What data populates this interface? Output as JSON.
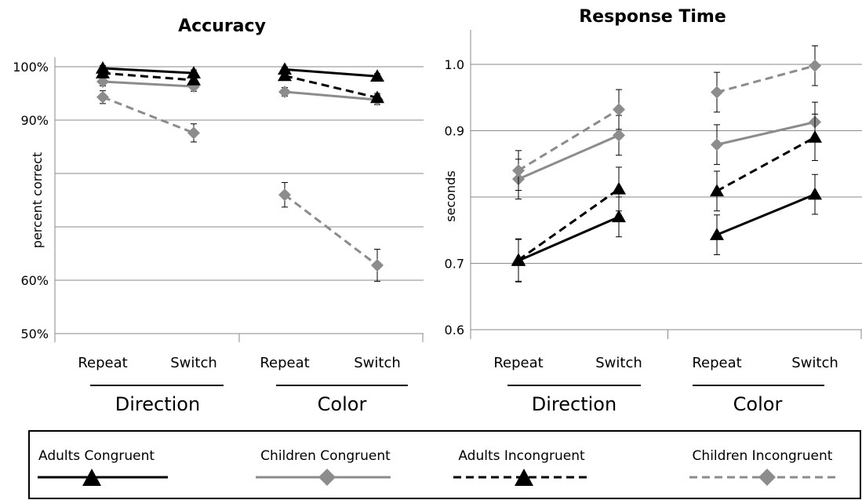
{
  "chart_data": [
    {
      "type": "line",
      "title": "Accuracy",
      "ylabel": "percent correct",
      "ylim": [
        50,
        100
      ],
      "yticks": [
        50,
        60,
        70,
        80,
        90,
        100
      ],
      "ytick_labels": [
        "50%",
        "60%",
        "",
        "",
        "90%",
        "100%"
      ],
      "categories": [
        "Repeat",
        "Switch",
        "Repeat",
        "Switch"
      ],
      "groups": [
        "Direction",
        "Color"
      ],
      "series": [
        {
          "name": "Adults Congruent",
          "values": [
            [
              99.7,
              98.8
            ],
            [
              99.5,
              98.2
            ]
          ],
          "errors": [
            [
              0.5,
              0.6
            ],
            [
              0.4,
              0.5
            ]
          ]
        },
        {
          "name": "Children Congruent",
          "values": [
            [
              97.2,
              96.3
            ],
            [
              95.3,
              93.8
            ]
          ],
          "errors": [
            [
              0.8,
              0.9
            ],
            [
              0.8,
              0.9
            ]
          ]
        },
        {
          "name": "Adults Incongruent",
          "values": [
            [
              98.8,
              97.5
            ],
            [
              98.3,
              94.2
            ]
          ],
          "errors": [
            [
              0.6,
              0.7
            ],
            [
              0.6,
              0.8
            ]
          ]
        },
        {
          "name": "Children Incongruent",
          "values": [
            [
              94.3,
              87.6
            ],
            [
              76.0,
              62.8
            ]
          ],
          "errors": [
            [
              1.2,
              1.7
            ],
            [
              2.3,
              3.0
            ]
          ]
        }
      ]
    },
    {
      "type": "line",
      "title": "Response Time",
      "ylabel": "seconds",
      "ylim": [
        0.6,
        1.0
      ],
      "yticks": [
        0.6,
        0.7,
        0.8,
        0.9,
        1.0
      ],
      "ytick_labels": [
        "0.6",
        "0.7",
        "",
        "0.9",
        "1.0"
      ],
      "categories": [
        "Repeat",
        "Switch",
        "Repeat",
        "Switch"
      ],
      "groups": [
        "Direction",
        "Color"
      ],
      "series": [
        {
          "name": "Adults Congruent",
          "values": [
            [
              0.704,
              0.77
            ],
            [
              0.743,
              0.804
            ]
          ],
          "errors": [
            [
              0.032,
              0.03
            ],
            [
              0.03,
              0.03
            ]
          ]
        },
        {
          "name": "Children Congruent",
          "values": [
            [
              0.827,
              0.893
            ],
            [
              0.879,
              0.913
            ]
          ],
          "errors": [
            [
              0.03,
              0.03
            ],
            [
              0.03,
              0.03
            ]
          ]
        },
        {
          "name": "Adults Incongruent",
          "values": [
            [
              0.705,
              0.812
            ],
            [
              0.809,
              0.89
            ]
          ],
          "errors": [
            [
              0.032,
              0.033
            ],
            [
              0.03,
              0.035
            ]
          ]
        },
        {
          "name": "Children Incongruent",
          "values": [
            [
              0.84,
              0.932
            ],
            [
              0.958,
              0.998
            ]
          ],
          "errors": [
            [
              0.03,
              0.03
            ],
            [
              0.03,
              0.03
            ]
          ]
        }
      ]
    }
  ],
  "styles": {
    "Adults Congruent": {
      "color": "#000000",
      "dash": "",
      "marker": "triangle"
    },
    "Children Congruent": {
      "color": "#8c8c8c",
      "dash": "",
      "marker": "diamond"
    },
    "Adults Incongruent": {
      "color": "#000000",
      "dash": "10,6",
      "marker": "triangle"
    },
    "Children Incongruent": {
      "color": "#8c8c8c",
      "dash": "10,6",
      "marker": "diamond"
    }
  },
  "legend": {
    "placement": "bottom",
    "items": [
      "Adults Congruent",
      "Children Congruent",
      "Adults Incongruent",
      "Children Incongruent"
    ]
  }
}
